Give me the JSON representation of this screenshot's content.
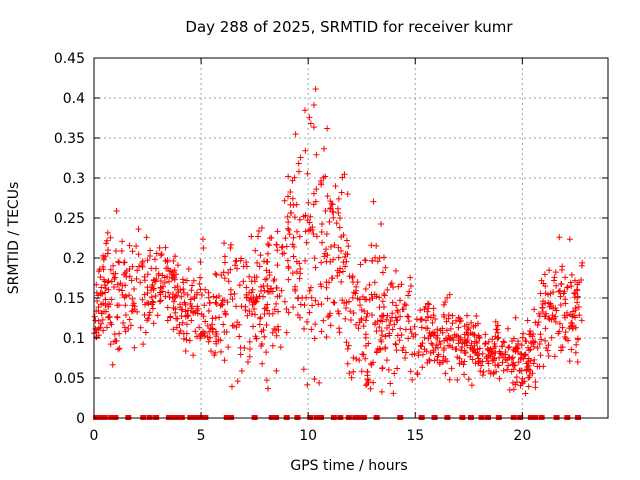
{
  "chart_data": {
    "type": "scatter",
    "title": "Day 288 of 2025, SRMTID for receiver kumr",
    "xlabel": "GPS time / hours",
    "ylabel": "SRMTID / TECUs",
    "xlim": [
      0,
      24
    ],
    "ylim": [
      0,
      0.45
    ],
    "xticks": [
      0,
      5,
      10,
      15,
      20
    ],
    "yticks": [
      0,
      0.05,
      0.1,
      0.15,
      0.2,
      0.25,
      0.3,
      0.35,
      0.4,
      0.45
    ],
    "xtick_labels": [
      "0",
      "5",
      "10",
      "15",
      "20"
    ],
    "ytick_labels": [
      "0",
      "0.05",
      "0.1",
      "0.15",
      "0.2",
      "0.25",
      "0.3",
      "0.35",
      "0.4",
      "0.45"
    ],
    "grid": true,
    "marker": "+",
    "color": "#ff0000",
    "envelope": {
      "hours": [
        0,
        0.5,
        1.0,
        1.5,
        2.0,
        2.5,
        3.0,
        3.5,
        4.0,
        4.5,
        5.0,
        5.5,
        6.0,
        6.5,
        7.0,
        7.5,
        8.0,
        8.5,
        9.0,
        9.5,
        10.0,
        10.5,
        11.0,
        11.5,
        12.0,
        12.5,
        13.0,
        13.5,
        14.0,
        14.5,
        15.0,
        15.5,
        16.0,
        16.5,
        17.0,
        17.5,
        18.0,
        18.5,
        19.0,
        19.5,
        20.0,
        20.5,
        21.0,
        21.5,
        22.0,
        22.5,
        22.8
      ],
      "center": [
        0.12,
        0.16,
        0.14,
        0.16,
        0.17,
        0.17,
        0.17,
        0.16,
        0.14,
        0.13,
        0.14,
        0.13,
        0.14,
        0.15,
        0.14,
        0.14,
        0.15,
        0.16,
        0.2,
        0.21,
        0.22,
        0.22,
        0.2,
        0.2,
        0.15,
        0.12,
        0.13,
        0.13,
        0.11,
        0.11,
        0.1,
        0.11,
        0.1,
        0.1,
        0.09,
        0.09,
        0.09,
        0.08,
        0.09,
        0.08,
        0.07,
        0.08,
        0.12,
        0.14,
        0.14,
        0.13,
        0.15
      ],
      "spread": [
        0.03,
        0.06,
        0.09,
        0.06,
        0.06,
        0.06,
        0.05,
        0.04,
        0.04,
        0.04,
        0.06,
        0.05,
        0.06,
        0.09,
        0.06,
        0.06,
        0.07,
        0.07,
        0.09,
        0.12,
        0.16,
        0.14,
        0.1,
        0.1,
        0.08,
        0.07,
        0.1,
        0.07,
        0.05,
        0.06,
        0.05,
        0.04,
        0.04,
        0.04,
        0.04,
        0.04,
        0.03,
        0.03,
        0.03,
        0.03,
        0.03,
        0.04,
        0.06,
        0.06,
        0.06,
        0.06,
        0.07
      ]
    },
    "zero_markers_hours": [
      0.1,
      0.2,
      0.3,
      0.5,
      0.8,
      1.0,
      1.6,
      2.3,
      2.6,
      2.9,
      3.5,
      3.7,
      3.9,
      4.1,
      4.5,
      4.7,
      4.9,
      5.0,
      5.2,
      6.2,
      6.4,
      7.5,
      8.3,
      8.5,
      9.0,
      9.5,
      10.1,
      10.4,
      10.6,
      11.2,
      11.5,
      11.9,
      12.2,
      12.4,
      12.6,
      13.2,
      14.3,
      15.3,
      15.9,
      16.5,
      17.2,
      17.6,
      18.1,
      18.4,
      18.9,
      19.6,
      19.9,
      20.4,
      20.6,
      20.9,
      21.6,
      22.1,
      22.6
    ]
  }
}
